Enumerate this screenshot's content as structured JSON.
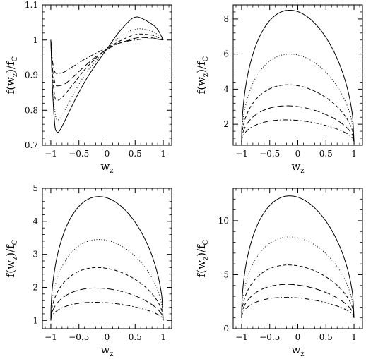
{
  "chart_data": [
    {
      "type": "line",
      "xlim": [
        -1.15,
        1.15
      ],
      "ylim": [
        0.7,
        1.1
      ],
      "xticks": [
        -1,
        -0.5,
        0,
        0.5,
        1
      ],
      "xtick_labels": [
        "−1",
        "−0.5",
        "0",
        "0.5",
        "1"
      ],
      "yticks": [
        0.7,
        0.8,
        0.9,
        1,
        1.1
      ],
      "ytick_labels": [
        "0.7",
        "0.8",
        "0.9",
        "1",
        "1.1"
      ],
      "xlabel": {
        "main": "w",
        "sub": "z"
      },
      "ylabel": {
        "pre": "f(w",
        "sub1": "z",
        "mid": ")/f",
        "sub2": "C"
      },
      "series": [
        {
          "style": "solid",
          "points": [
            [
              -1,
              1
            ],
            [
              -0.97,
              0.86
            ],
            [
              -0.93,
              0.76
            ],
            [
              -0.9,
              0.74
            ],
            [
              -0.85,
              0.74
            ],
            [
              -0.75,
              0.77
            ],
            [
              -0.6,
              0.82
            ],
            [
              -0.4,
              0.88
            ],
            [
              -0.2,
              0.93
            ],
            [
              0,
              0.975
            ],
            [
              0.2,
              1.02
            ],
            [
              0.4,
              1.055
            ],
            [
              0.5,
              1.065
            ],
            [
              0.6,
              1.063
            ],
            [
              0.8,
              1.045
            ],
            [
              0.9,
              1.03
            ],
            [
              1,
              1.0
            ]
          ]
        },
        {
          "style": "dotted",
          "points": [
            [
              -1,
              1
            ],
            [
              -0.97,
              0.87
            ],
            [
              -0.93,
              0.8
            ],
            [
              -0.9,
              0.775
            ],
            [
              -0.85,
              0.775
            ],
            [
              -0.75,
              0.8
            ],
            [
              -0.6,
              0.845
            ],
            [
              -0.4,
              0.9
            ],
            [
              -0.2,
              0.94
            ],
            [
              0,
              0.975
            ],
            [
              0.2,
              1.005
            ],
            [
              0.4,
              1.025
            ],
            [
              0.5,
              1.03
            ],
            [
              0.6,
              1.032
            ],
            [
              0.8,
              1.025
            ],
            [
              0.9,
              1.015
            ],
            [
              1,
              1.0
            ]
          ]
        },
        {
          "style": "dashed",
          "points": [
            [
              -1,
              1
            ],
            [
              -0.97,
              0.9
            ],
            [
              -0.93,
              0.84
            ],
            [
              -0.9,
              0.83
            ],
            [
              -0.85,
              0.83
            ],
            [
              -0.75,
              0.845
            ],
            [
              -0.6,
              0.875
            ],
            [
              -0.4,
              0.915
            ],
            [
              -0.2,
              0.948
            ],
            [
              0,
              0.975
            ],
            [
              0.2,
              0.995
            ],
            [
              0.4,
              1.01
            ],
            [
              0.5,
              1.015
            ],
            [
              0.6,
              1.017
            ],
            [
              0.8,
              1.014
            ],
            [
              0.9,
              1.008
            ],
            [
              1,
              1.0
            ]
          ]
        },
        {
          "style": "longdash",
          "points": [
            [
              -1,
              1
            ],
            [
              -0.97,
              0.92
            ],
            [
              -0.93,
              0.88
            ],
            [
              -0.9,
              0.87
            ],
            [
              -0.85,
              0.87
            ],
            [
              -0.75,
              0.875
            ],
            [
              -0.6,
              0.895
            ],
            [
              -0.4,
              0.925
            ],
            [
              -0.2,
              0.952
            ],
            [
              0,
              0.973
            ],
            [
              0.2,
              0.99
            ],
            [
              0.4,
              1.0
            ],
            [
              0.5,
              1.005
            ],
            [
              0.6,
              1.007
            ],
            [
              0.8,
              1.006
            ],
            [
              0.9,
              1.003
            ],
            [
              1,
              1.0
            ]
          ]
        },
        {
          "style": "dashdot",
          "points": [
            [
              -1,
              1
            ],
            [
              -0.97,
              0.94
            ],
            [
              -0.93,
              0.91
            ],
            [
              -0.9,
              0.905
            ],
            [
              -0.85,
              0.905
            ],
            [
              -0.75,
              0.91
            ],
            [
              -0.6,
              0.925
            ],
            [
              -0.4,
              0.945
            ],
            [
              -0.2,
              0.962
            ],
            [
              0,
              0.977
            ],
            [
              0.2,
              0.99
            ],
            [
              0.4,
              0.998
            ],
            [
              0.5,
              1.0
            ],
            [
              0.6,
              1.002
            ],
            [
              0.8,
              1.003
            ],
            [
              0.9,
              1.002
            ],
            [
              1,
              1.0
            ]
          ]
        }
      ]
    },
    {
      "type": "line",
      "xlim": [
        -1.15,
        1.15
      ],
      "ylim": [
        0.8,
        8.8
      ],
      "xticks": [
        -1,
        -0.5,
        0,
        0.5,
        1
      ],
      "xtick_labels": [
        "−1",
        "−0.5",
        "0",
        "0.5",
        "1"
      ],
      "yticks": [
        2,
        4,
        6,
        8
      ],
      "ytick_labels": [
        "2",
        "4",
        "6",
        "8"
      ],
      "xlabel": {
        "main": "w",
        "sub": "z"
      },
      "ylabel": {
        "pre": "f(w",
        "sub1": "z",
        "mid": ")/f",
        "sub2": "C"
      },
      "series": [
        {
          "style": "solid",
          "peak": 8.5,
          "peak_x": -0.25
        },
        {
          "style": "dotted",
          "peak": 6.0,
          "peak_x": -0.25
        },
        {
          "style": "dashed",
          "peak": 4.25,
          "peak_x": -0.3
        },
        {
          "style": "longdash",
          "peak": 3.05,
          "peak_x": -0.35
        },
        {
          "style": "dashdot",
          "peak": 2.25,
          "peak_x": -0.4
        }
      ]
    },
    {
      "type": "line",
      "xlim": [
        -1.15,
        1.15
      ],
      "ylim": [
        0.75,
        5.0
      ],
      "xticks": [
        -1,
        -0.5,
        0,
        0.5,
        1
      ],
      "xtick_labels": [
        "−1",
        "−0.5",
        "0",
        "0.5",
        "1"
      ],
      "yticks": [
        1,
        2,
        3,
        4,
        5
      ],
      "ytick_labels": [
        "1",
        "2",
        "3",
        "4",
        "5"
      ],
      "xlabel": {
        "main": "w",
        "sub": "z"
      },
      "ylabel": {
        "pre": "f(w",
        "sub1": "z",
        "mid": ")/f",
        "sub2": "C"
      },
      "series": [
        {
          "style": "solid",
          "peak": 4.75,
          "peak_x": -0.25
        },
        {
          "style": "dotted",
          "peak": 3.45,
          "peak_x": -0.25
        },
        {
          "style": "dashed",
          "peak": 2.6,
          "peak_x": -0.3
        },
        {
          "style": "longdash",
          "peak": 1.98,
          "peak_x": -0.35
        },
        {
          "style": "dashdot",
          "peak": 1.55,
          "peak_x": -0.4
        }
      ]
    },
    {
      "type": "line",
      "xlim": [
        -1.15,
        1.15
      ],
      "ylim": [
        0,
        13
      ],
      "xticks": [
        -1,
        -0.5,
        0,
        0.5,
        1
      ],
      "xtick_labels": [
        "−1",
        "−0.5",
        "0",
        "0.5",
        "1"
      ],
      "yticks": [
        0,
        5,
        10
      ],
      "ytick_labels": [
        "0",
        "5",
        "10"
      ],
      "xlabel": {
        "main": "w",
        "sub": "z"
      },
      "ylabel": {
        "pre": "f(w",
        "sub1": "z",
        "mid": ")/f",
        "sub2": "C"
      },
      "series": [
        {
          "style": "solid",
          "peak": 12.3,
          "peak_x": -0.25
        },
        {
          "style": "dotted",
          "peak": 8.5,
          "peak_x": -0.25
        },
        {
          "style": "dashed",
          "peak": 5.9,
          "peak_x": -0.3
        },
        {
          "style": "longdash",
          "peak": 4.1,
          "peak_x": -0.35
        },
        {
          "style": "dashdot",
          "peak": 2.9,
          "peak_x": -0.4
        }
      ]
    }
  ]
}
